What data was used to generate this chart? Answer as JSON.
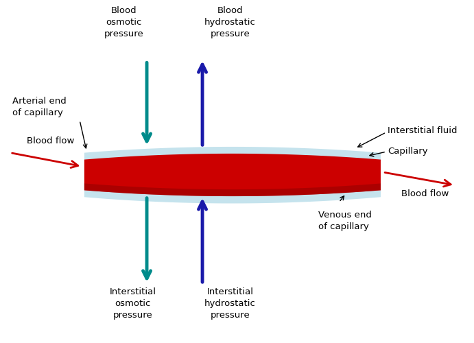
{
  "bg_color": "#ffffff",
  "capillary_red": "#cc0000",
  "capillary_border": "#add8e6",
  "blood_flow_color": "#cc0000",
  "teal": "#008B8B",
  "dark_blue": "#1a1aaa",
  "label_color": "#000000",
  "labels": {
    "blood_osmotic": "Blood\nosmotic\npressure",
    "blood_hydrostatic": "Blood\nhydrostatic\npressure",
    "interstitial_osmotic": "Interstitial\nosmotic\npressure",
    "interstitial_hydrostatic": "Interstitial\nhydrostatic\npressure",
    "arterial_end": "Arterial end\nof capillary",
    "venous_end": "Venous end\nof capillary",
    "blood_flow": "Blood flow",
    "capillary": "Capillary",
    "interstitial_fluid": "Interstitial fluid"
  },
  "figsize": [
    6.91,
    5.0
  ],
  "dpi": 100
}
